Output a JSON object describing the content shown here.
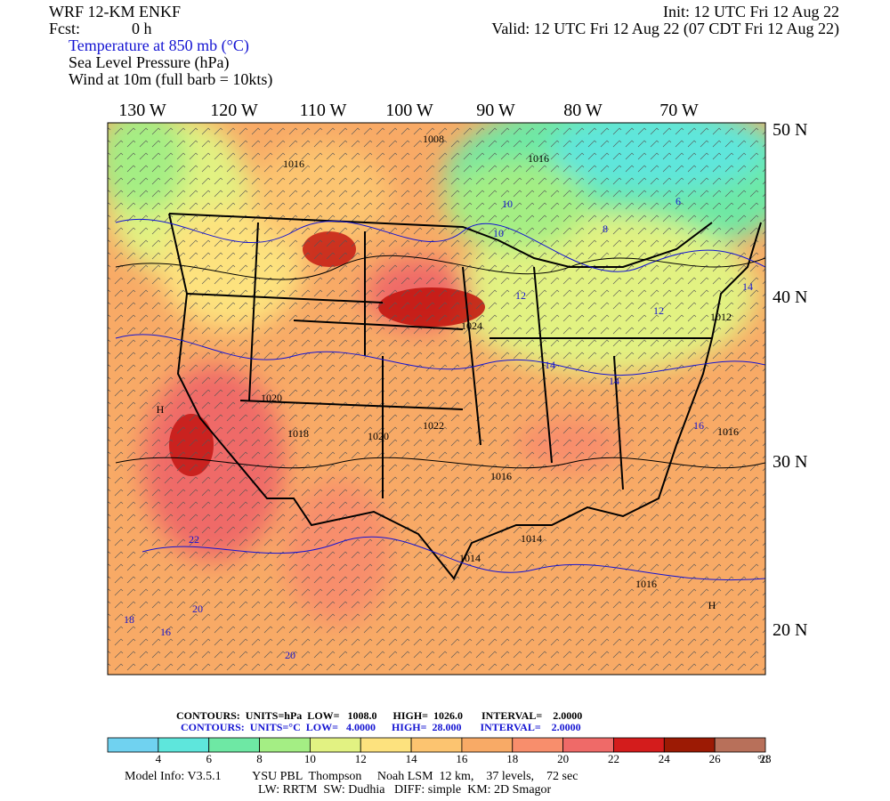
{
  "header": {
    "model": "WRF 12-KM ENKF",
    "fcst_label": "Fcst:",
    "fcst": "0 h",
    "init": "Init: 12 UTC Fri 12 Aug 22",
    "valid": "Valid: 12 UTC Fri 12 Aug 22 (07 CDT Fri 12 Aug 22)",
    "fields": [
      "Temperature at 850 mb (°C)",
      "Sea Level Pressure (hPa)",
      "Wind at 10m (full barb = 10kts)"
    ]
  },
  "map": {
    "longitudes": [
      "130 W",
      "120 W",
      "110 W",
      "100 W",
      "90 W",
      "80 W",
      "70 W"
    ],
    "latitudes": [
      "50 N",
      "40 N",
      "30 N",
      "20 N"
    ],
    "labels": [
      "1008",
      "1016",
      "1016",
      "10",
      "10",
      "1024",
      "1022",
      "1016",
      "1014",
      "1014",
      "1016",
      "1016",
      "1012",
      "1020",
      "1018",
      "1020",
      "22",
      "20",
      "18",
      "16",
      "20",
      "12",
      "14",
      "14",
      "16",
      "12",
      "14",
      "H",
      "H",
      "8",
      "6"
    ]
  },
  "contours": {
    "pressure": "CONTOURS:  UNITS=hPa  LOW=   1008.0      HIGH=  1026.0       INTERVAL=    2.0000",
    "temperature": "CONTOURS:  UNITS=°C  LOW=   4.0000      HIGH=  28.000       INTERVAL=    2.0000"
  },
  "colorbar": {
    "colors": [
      "#70d2f0",
      "#5ee6dc",
      "#6ee8a4",
      "#a4ee84",
      "#e2f282",
      "#fde27e",
      "#fcc470",
      "#f8aa66",
      "#f88e6c",
      "#ef6a68",
      "#d41c1c",
      "#9c1a04",
      "#b8705a"
    ],
    "labels": [
      "4",
      "6",
      "8",
      "10",
      "12",
      "14",
      "16",
      "18",
      "20",
      "22",
      "24",
      "26",
      "28"
    ],
    "unit": "°C"
  },
  "footer": {
    "line1": "Model Info: V3.5.1          YSU PBL  Thompson     Noah LSM  12 km,    37 levels,    72 sec",
    "line2": "LW: RRTM  SW: Dudhia   DIFF: simple  KM: 2D Smagor"
  }
}
